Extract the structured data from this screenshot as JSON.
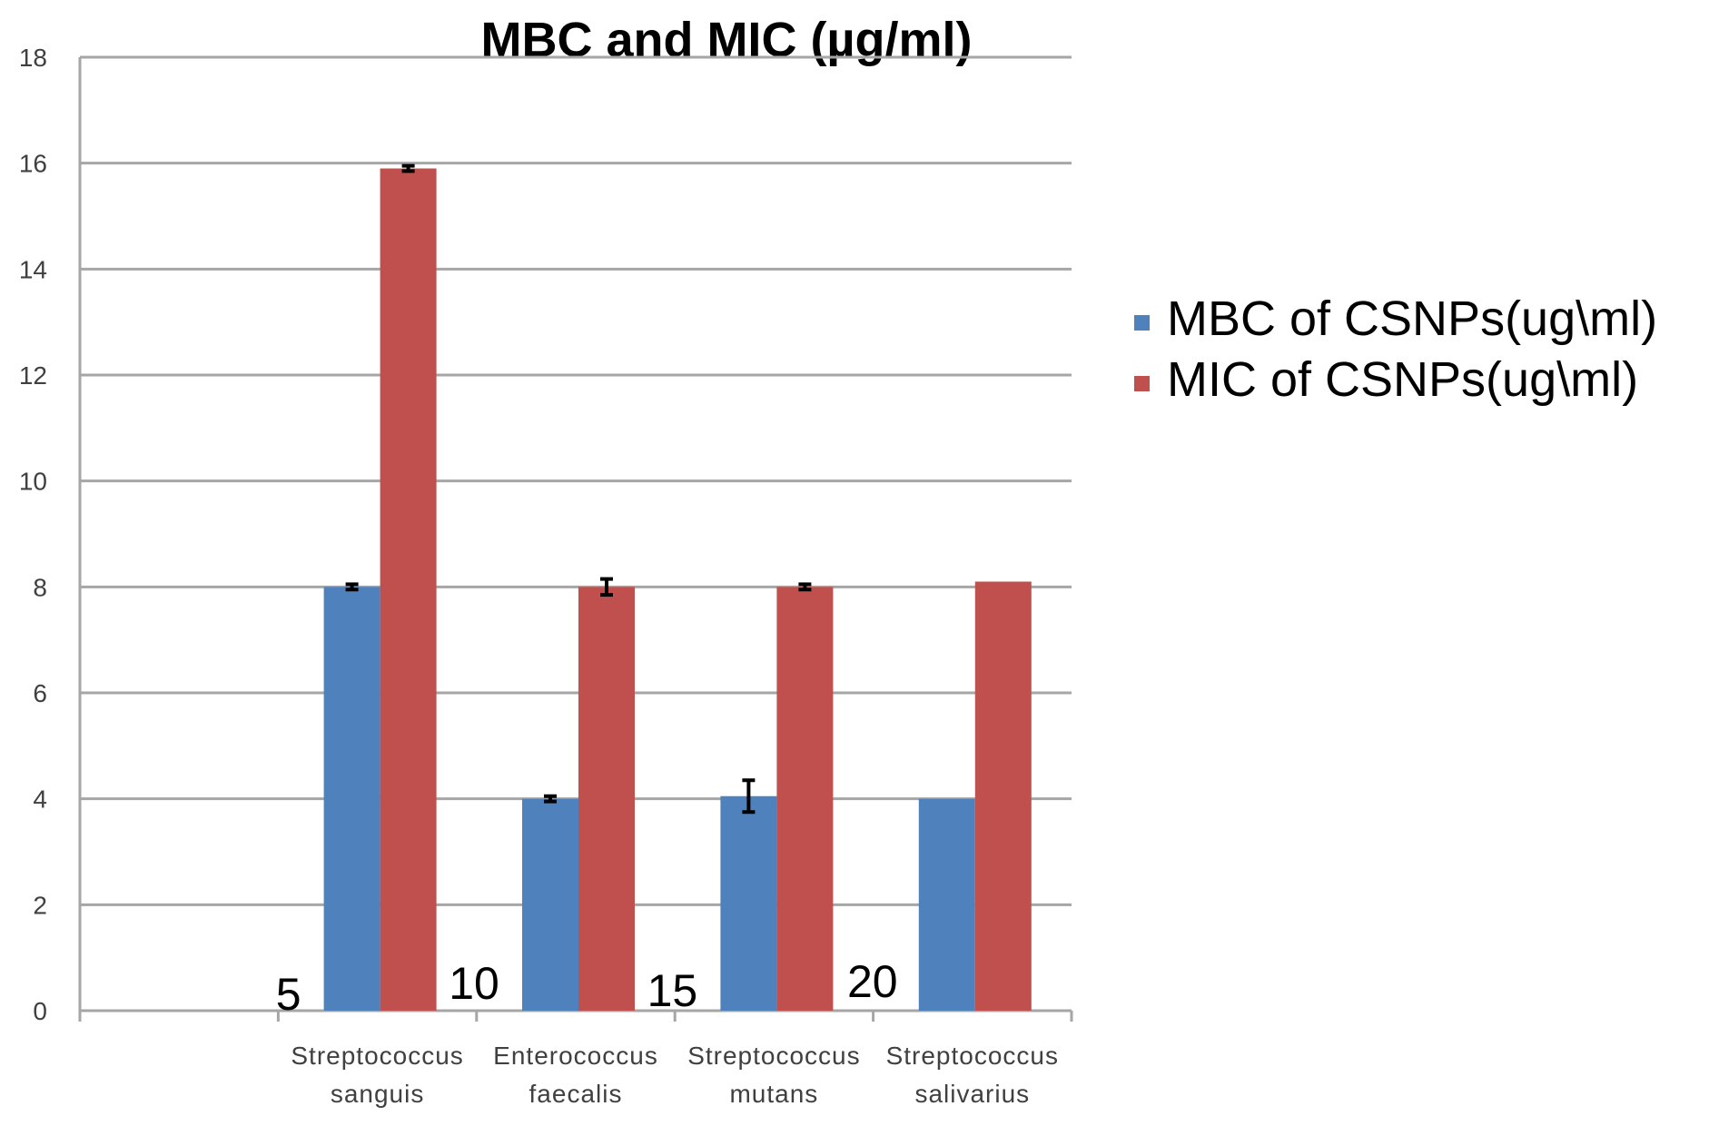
{
  "chart_data": {
    "type": "bar",
    "title": "MBC and MIC (µg/ml)",
    "xlabel": "",
    "ylabel": "",
    "ylim": [
      0,
      18
    ],
    "yticks": [
      0,
      2,
      4,
      6,
      8,
      10,
      12,
      14,
      16,
      18
    ],
    "grid": true,
    "legend_position": "right",
    "categories": [
      [
        "",
        ""
      ],
      [
        "Streptococcus",
        "sanguis"
      ],
      [
        "Enterococcus",
        "faecalis"
      ],
      [
        "Streptococcus",
        "mutans"
      ],
      [
        "Streptococcus",
        "salivarius"
      ]
    ],
    "series": [
      {
        "name": "MBC of CSNPs(ug\\ml)",
        "color": "#4f81bd",
        "values": [
          null,
          8,
          4,
          4.05,
          4
        ],
        "errors": [
          null,
          0.05,
          0.05,
          0.3,
          0
        ]
      },
      {
        "name": "MIC of CSNPs(ug\\ml)",
        "color": "#c0504d",
        "values": [
          null,
          15.9,
          8,
          8,
          8.1
        ],
        "errors": [
          null,
          0.05,
          0.15,
          0.05,
          0
        ]
      }
    ],
    "annotations": [
      "5",
      "10",
      "15",
      "20"
    ]
  }
}
